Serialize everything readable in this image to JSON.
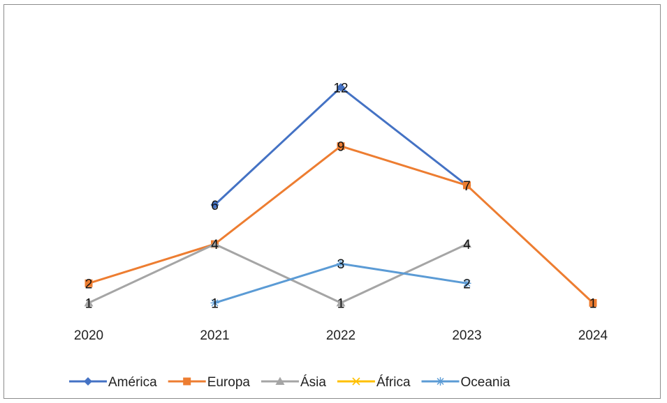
{
  "chart_data": {
    "type": "line",
    "title": "",
    "xlabel": "",
    "ylabel": "",
    "categories": [
      "2020",
      "2021",
      "2022",
      "2023",
      "2024"
    ],
    "ylim": [
      0,
      14
    ],
    "grid": false,
    "legend_position": "bottom",
    "series": [
      {
        "name": "América",
        "color": "#4472c4",
        "marker": "diamond",
        "values": [
          null,
          6,
          12,
          7,
          null
        ]
      },
      {
        "name": "Europa",
        "color": "#ed7d31",
        "marker": "square",
        "values": [
          2,
          4,
          9,
          7,
          1
        ]
      },
      {
        "name": "Ásia",
        "color": "#a5a5a5",
        "marker": "triangle",
        "values": [
          1,
          4,
          1,
          4,
          null
        ]
      },
      {
        "name": "África",
        "color": "#ffc000",
        "marker": "x",
        "values": [
          null,
          null,
          null,
          null,
          null
        ]
      },
      {
        "name": "Oceania",
        "color": "#5b9bd5",
        "marker": "star",
        "values": [
          null,
          1,
          3,
          2,
          null
        ]
      }
    ]
  }
}
